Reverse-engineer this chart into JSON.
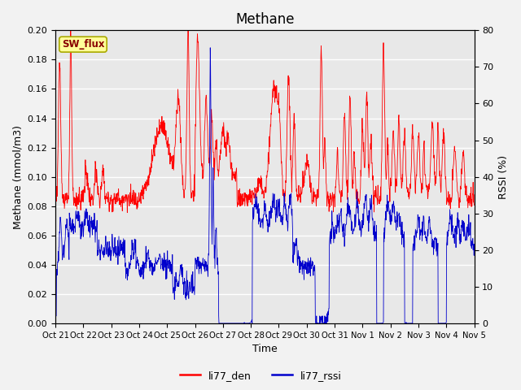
{
  "title": "Methane",
  "xlabel": "Time",
  "ylabel_left": "Methane (mmol/m3)",
  "ylabel_right": "RSSI (%)",
  "ylim_left": [
    0.0,
    0.2
  ],
  "ylim_right": [
    0,
    80
  ],
  "yticks_left": [
    0.0,
    0.02,
    0.04,
    0.06,
    0.08,
    0.1,
    0.12,
    0.14,
    0.16,
    0.18,
    0.2
  ],
  "yticks_right": [
    0,
    10,
    20,
    30,
    40,
    50,
    60,
    70,
    80
  ],
  "xtick_labels": [
    "Oct 21",
    "Oct 22",
    "Oct 23",
    "Oct 24",
    "Oct 25",
    "Oct 26",
    "Oct 27",
    "Oct 28",
    "Oct 29",
    "Oct 30",
    "Oct 31",
    "Nov 1",
    "Nov 2",
    "Nov 3",
    "Nov 4",
    "Nov 5"
  ],
  "color_red": "#ff0000",
  "color_blue": "#0000cc",
  "legend_label_red": "li77_den",
  "legend_label_blue": "li77_rssi",
  "annotation_text": "SW_flux",
  "annotation_bbox_facecolor": "#ffff99",
  "annotation_bbox_edgecolor": "#aaaa00",
  "background_color": "#e8e8e8",
  "grid_color": "#ffffff",
  "title_fontsize": 12,
  "axis_label_fontsize": 9,
  "tick_fontsize": 8,
  "n_days": 15,
  "n_per_day": 96,
  "red_base": 0.085,
  "blue_base": 0.04
}
